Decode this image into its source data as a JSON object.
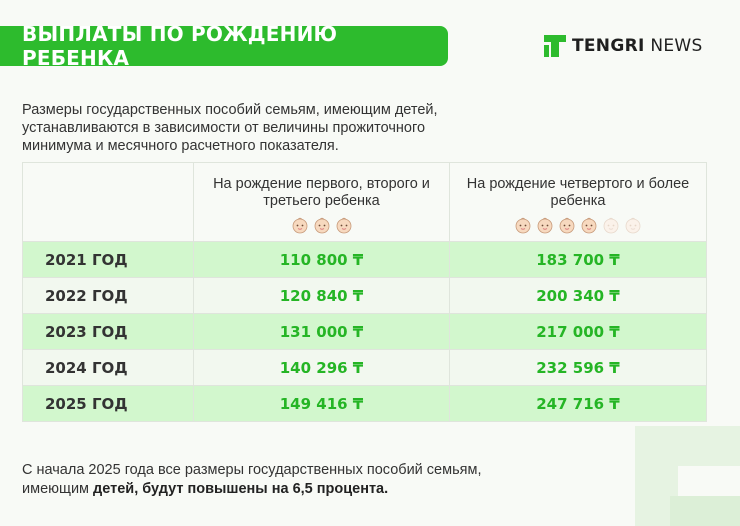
{
  "header": {
    "title": "ВЫПЛАТЫ ПО РОЖДЕНИЮ РЕБЕНКА"
  },
  "brand": {
    "bold": "TENGRI",
    "light": "NEWS",
    "icon": "tengri-logo-icon",
    "color": "#2dbb2d"
  },
  "intro_text": "Размеры государственных пособий семьям, имеющим детей, устанавливаются в зависимости от величины прожиточного минимума и месячного расчетного показателя.",
  "table": {
    "columns": [
      {
        "label": "На рождение первого, второго и третьего ребенка",
        "icon": "baby-face-icon",
        "icon_count": 3,
        "icon_faded": 0
      },
      {
        "label": "На рождение четвертого и более ребенка",
        "icon": "baby-face-icon",
        "icon_count": 6,
        "icon_faded": 2
      }
    ],
    "rows": [
      {
        "year": "2021 ГОД",
        "first_to_third": "110 800 ₸",
        "fourth_plus": "183 700 ₸"
      },
      {
        "year": "2022 ГОД",
        "first_to_third": "120 840 ₸",
        "fourth_plus": "200 340 ₸"
      },
      {
        "year": "2023 ГОД",
        "first_to_third": "131 000 ₸",
        "fourth_plus": "217 000 ₸"
      },
      {
        "year": "2024 ГОД",
        "first_to_third": "140 296 ₸",
        "fourth_plus": "232 596 ₸"
      },
      {
        "year": "2025 ГОД",
        "first_to_third": "149 416 ₸",
        "fourth_plus": "247 716 ₸"
      }
    ]
  },
  "footer": {
    "text_plain": "С начала 2025 года все размеры государственных пособий семьям, имеющим ",
    "text_bold": "детей, будут повышены на 6,5 процента."
  },
  "colors": {
    "accent_green": "#2dbb2d",
    "amount_green": "#25b525",
    "row_highlight": "#d2f7cd",
    "row_alt": "#f2f8ef"
  }
}
